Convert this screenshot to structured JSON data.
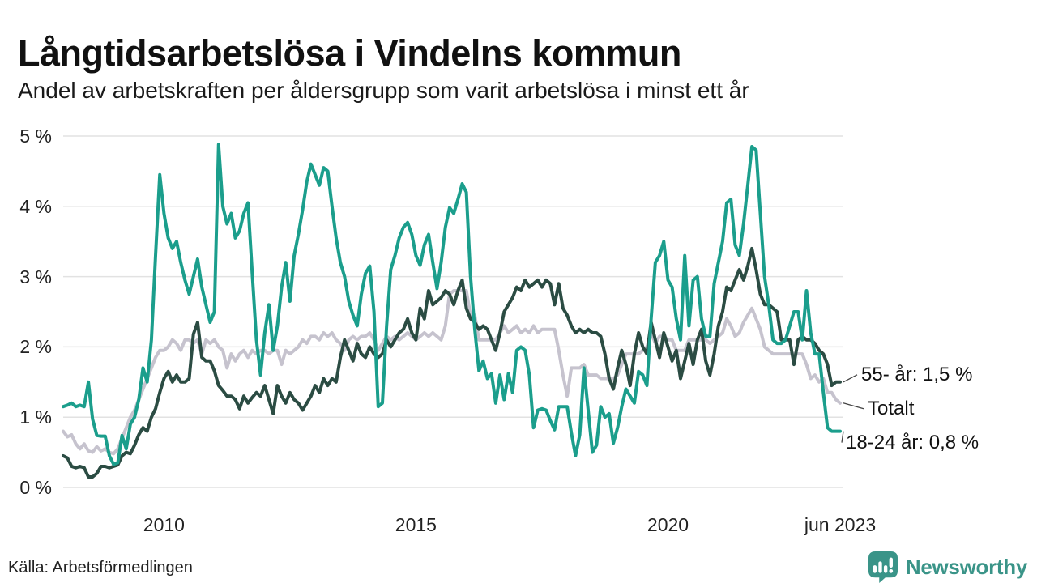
{
  "title": "Långtidsarbetslösa i Vindelns kommun",
  "subtitle": "Andel av arbetskraften per åldersgrupp som varit arbetslösa i minst ett år",
  "source": "Källa: Arbetsförmedlingen",
  "branding": {
    "name": "Newsworthy",
    "color": "#3a9488"
  },
  "colors": {
    "background": "#ffffff",
    "title_text": "#111111",
    "axis_text": "#222222",
    "gridline": "#e2e2e2",
    "connector": "#444444",
    "teal_series": "#1b9e8c",
    "dark_green_series": "#2b4c43",
    "gray_series": "#c6c3ce"
  },
  "chart_data": {
    "type": "line",
    "title": "Långtidsarbetslösa i Vindelns kommun",
    "subtitle": "Andel av arbetskraften per åldersgrupp som varit arbetslösa i minst ett år",
    "x_start": "2008-01",
    "x_end": "2023-06",
    "x_interval": "monthly",
    "ylim": [
      0,
      5
    ],
    "grid": "horizontal",
    "y_ticks": [
      {
        "label": "0 %",
        "value": 0
      },
      {
        "label": "1 %",
        "value": 1
      },
      {
        "label": "2 %",
        "value": 2
      },
      {
        "label": "3 %",
        "value": 3
      },
      {
        "label": "4 %",
        "value": 4
      },
      {
        "label": "5 %",
        "value": 5
      }
    ],
    "x_ticks": [
      {
        "label": "2010",
        "index": 24
      },
      {
        "label": "2015",
        "index": 84
      },
      {
        "label": "2020",
        "index": 144
      },
      {
        "label": "jun 2023",
        "index": 185
      }
    ],
    "series": [
      {
        "name": "Totalt",
        "color": "#c6c3ce",
        "values": [
          0.8,
          0.72,
          0.75,
          0.62,
          0.55,
          0.62,
          0.52,
          0.5,
          0.58,
          0.52,
          0.55,
          0.5,
          0.48,
          0.55,
          0.7,
          0.85,
          1.0,
          1.1,
          1.25,
          1.4,
          1.55,
          1.7,
          1.85,
          1.95,
          1.95,
          2.0,
          2.1,
          2.05,
          1.95,
          2.1,
          2.1,
          2.05,
          2.1,
          1.9,
          2.1,
          2.05,
          2.1,
          2.0,
          1.95,
          1.7,
          1.9,
          1.8,
          1.9,
          1.95,
          1.85,
          1.95,
          1.9,
          1.95,
          1.95,
          1.9,
          1.95,
          1.95,
          1.75,
          1.95,
          1.9,
          1.95,
          2.0,
          2.1,
          2.05,
          2.15,
          2.15,
          2.1,
          2.2,
          2.15,
          2.2,
          2.1,
          2.05,
          1.95,
          2.1,
          2.15,
          2.1,
          2.15,
          2.15,
          2.2,
          2.1,
          1.95,
          2.05,
          2.15,
          2.1,
          2.15,
          2.1,
          2.15,
          2.2,
          2.15,
          2.1,
          2.15,
          2.2,
          2.15,
          2.2,
          2.15,
          2.1,
          2.3,
          2.75,
          2.8,
          2.8,
          2.8,
          2.8,
          2.45,
          2.45,
          2.1,
          2.1,
          2.1,
          2.1,
          2.1,
          2.2,
          2.3,
          2.2,
          2.25,
          2.3,
          2.2,
          2.25,
          2.2,
          2.3,
          2.2,
          2.25,
          2.25,
          2.25,
          2.25,
          1.95,
          1.6,
          1.3,
          1.7,
          1.7,
          1.7,
          1.75,
          1.6,
          1.6,
          1.6,
          1.55,
          1.55,
          1.55,
          1.55,
          1.6,
          1.75,
          1.9,
          1.9,
          1.9,
          1.9,
          1.95,
          2.0,
          2.2,
          2.05,
          2.15,
          2.15,
          2.1,
          2.1,
          1.95,
          1.95,
          1.95,
          2.1,
          2.1,
          2.1,
          2.1,
          2.1,
          2.05,
          2.1,
          2.15,
          2.2,
          2.4,
          2.3,
          2.15,
          2.2,
          2.35,
          2.45,
          2.55,
          2.4,
          2.25,
          2.0,
          1.95,
          1.9,
          1.9,
          1.9,
          1.9,
          1.9,
          1.9,
          1.9,
          1.9,
          1.75,
          1.55,
          1.6,
          1.5,
          1.55,
          1.35,
          1.35,
          1.25,
          1.2
        ]
      },
      {
        "name": "55- år",
        "color": "#2b4c43",
        "values": [
          0.45,
          0.42,
          0.3,
          0.28,
          0.3,
          0.28,
          0.15,
          0.15,
          0.2,
          0.3,
          0.3,
          0.28,
          0.3,
          0.32,
          0.45,
          0.5,
          0.48,
          0.6,
          0.75,
          0.85,
          0.8,
          1.0,
          1.12,
          1.35,
          1.55,
          1.65,
          1.5,
          1.6,
          1.5,
          1.5,
          1.55,
          2.18,
          2.35,
          1.85,
          1.8,
          1.8,
          1.66,
          1.45,
          1.38,
          1.3,
          1.3,
          1.25,
          1.12,
          1.3,
          1.2,
          1.28,
          1.35,
          1.3,
          1.45,
          1.25,
          1.05,
          1.45,
          1.3,
          1.2,
          1.35,
          1.25,
          1.2,
          1.1,
          1.2,
          1.3,
          1.45,
          1.35,
          1.55,
          1.45,
          1.55,
          1.5,
          1.85,
          2.1,
          1.95,
          1.8,
          2.05,
          1.9,
          1.85,
          2.0,
          1.9,
          1.85,
          1.9,
          2.1,
          2.0,
          2.1,
          2.2,
          2.25,
          2.4,
          2.2,
          2.1,
          2.55,
          2.4,
          2.8,
          2.6,
          2.65,
          2.7,
          2.8,
          2.75,
          2.6,
          2.8,
          2.95,
          2.55,
          2.4,
          2.35,
          2.25,
          2.3,
          2.25,
          2.1,
          1.95,
          2.2,
          2.5,
          2.6,
          2.7,
          2.85,
          2.8,
          2.95,
          2.85,
          2.9,
          2.95,
          2.85,
          2.95,
          2.9,
          2.6,
          2.9,
          2.55,
          2.45,
          2.3,
          2.2,
          2.25,
          2.2,
          2.25,
          2.2,
          2.2,
          2.15,
          1.9,
          1.55,
          1.4,
          1.7,
          1.95,
          1.75,
          1.45,
          1.9,
          2.2,
          2.0,
          1.9,
          2.35,
          2.1,
          1.85,
          2.2,
          2.0,
          1.8,
          1.95,
          1.55,
          1.8,
          2.05,
          1.75,
          2.1,
          2.25,
          1.8,
          1.6,
          1.9,
          2.3,
          2.5,
          2.85,
          2.8,
          2.95,
          3.1,
          2.95,
          3.15,
          3.4,
          3.1,
          2.75,
          2.6,
          2.6,
          2.55,
          2.5,
          2.1,
          2.1,
          2.1,
          1.75,
          2.1,
          2.15,
          2.1,
          2.1,
          2.05,
          1.95,
          1.9,
          1.75,
          1.45,
          1.5,
          1.5
        ]
      },
      {
        "name": "18-24 år",
        "color": "#1b9e8c",
        "values": [
          1.15,
          1.17,
          1.2,
          1.15,
          1.17,
          1.15,
          1.5,
          0.97,
          0.74,
          0.73,
          0.73,
          0.45,
          0.33,
          0.35,
          0.74,
          0.55,
          0.9,
          1.0,
          1.25,
          1.7,
          1.5,
          2.1,
          3.3,
          4.45,
          3.9,
          3.55,
          3.4,
          3.5,
          3.2,
          2.95,
          2.75,
          3.0,
          3.25,
          2.85,
          2.6,
          2.35,
          2.5,
          4.88,
          4.0,
          3.75,
          3.9,
          3.55,
          3.65,
          3.9,
          4.05,
          3.05,
          2.1,
          1.6,
          2.2,
          2.6,
          1.95,
          2.3,
          2.85,
          3.2,
          2.65,
          3.3,
          3.6,
          3.95,
          4.35,
          4.6,
          4.45,
          4.3,
          4.55,
          4.5,
          4.0,
          3.55,
          3.2,
          3.0,
          2.65,
          2.45,
          2.3,
          2.75,
          3.05,
          3.15,
          2.5,
          1.15,
          1.2,
          2.3,
          3.1,
          3.3,
          3.55,
          3.7,
          3.77,
          3.6,
          3.3,
          3.16,
          3.45,
          3.6,
          3.2,
          2.83,
          3.2,
          3.7,
          3.98,
          3.9,
          4.1,
          4.32,
          4.2,
          3.0,
          2.25,
          1.66,
          1.8,
          1.55,
          1.62,
          1.2,
          1.6,
          1.25,
          1.62,
          1.35,
          1.95,
          2.0,
          1.95,
          1.6,
          0.85,
          1.1,
          1.12,
          1.1,
          0.95,
          0.82,
          1.15,
          1.15,
          1.15,
          0.78,
          0.45,
          0.75,
          1.7,
          1.1,
          0.5,
          0.6,
          1.15,
          1.0,
          1.05,
          0.63,
          0.85,
          1.15,
          1.4,
          1.3,
          1.2,
          1.65,
          1.6,
          1.45,
          2.4,
          3.2,
          3.3,
          3.5,
          2.95,
          2.85,
          2.4,
          2.1,
          3.3,
          2.3,
          2.95,
          3.0,
          2.4,
          2.15,
          2.15,
          2.9,
          3.2,
          3.5,
          4.05,
          4.1,
          3.45,
          3.3,
          3.75,
          4.3,
          4.85,
          4.8,
          3.9,
          3.0,
          2.6,
          2.1,
          2.05,
          2.05,
          2.1,
          2.3,
          2.5,
          2.5,
          2.1,
          2.8,
          2.2,
          1.9,
          1.9,
          1.35,
          0.85,
          0.8,
          0.8,
          0.8
        ]
      }
    ],
    "annotations": [
      {
        "text": "55- år: 1,5 %",
        "series": "55- år",
        "value": 1.5
      },
      {
        "text": "Totalt",
        "series": "Totalt",
        "value": 1.2
      },
      {
        "text": "18-24 år: 0,8 %",
        "series": "18-24 år",
        "value": 0.8
      }
    ],
    "legend_position": "end-of-line-labels"
  }
}
